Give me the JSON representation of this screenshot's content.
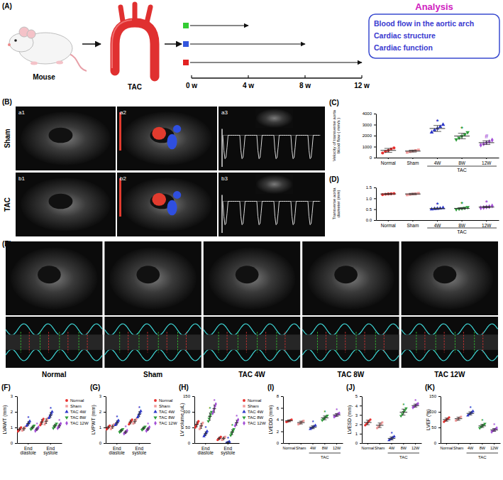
{
  "panel_labels": [
    "(A)",
    "(B)",
    "(C)",
    "(D)",
    "(E)",
    "(F)",
    "(G)",
    "(H)",
    "(I)",
    "(J)",
    "(K)"
  ],
  "diagram": {
    "mouse": "Mouse",
    "surgery": "TAC",
    "timeline": [
      "0 w",
      "4 w",
      "8 w",
      "12 w"
    ],
    "analysis_title": "Analysis",
    "analysis_items": [
      "Blood flow in the aortic arch",
      "Cardiac structure",
      "Cardiac function"
    ]
  },
  "ultrasound": {
    "rows": [
      "Sham",
      "TAC"
    ],
    "images": [
      [
        "a1",
        "a2",
        "a3"
      ],
      [
        "b1",
        "b2",
        "b3"
      ]
    ]
  },
  "echo": {
    "groups": [
      "Normal",
      "Sham",
      "TAC 4W",
      "TAC 8W",
      "TAC 12W"
    ]
  },
  "chart_data": [
    {
      "type": "dot",
      "ylabel": "Velocity of transverse aorta\nblood flow ( mm/s )",
      "xlabel": "TAC",
      "categories": [
        "Normal",
        "Sham",
        "4W",
        "8W",
        "12W"
      ],
      "ylim": [
        0,
        4000
      ],
      "yticks": [
        0,
        1000,
        2000,
        3000,
        4000
      ],
      "series": [
        {
          "color": "#e8312f",
          "marker": "circle",
          "values": [
            420,
            560,
            650,
            780,
            880
          ],
          "mean": 658,
          "sd": 180
        },
        {
          "color": "#f09a9a",
          "marker": "square",
          "values": [
            480,
            540,
            600,
            650,
            700
          ],
          "mean": 594,
          "sd": 85
        },
        {
          "color": "#2b35c9",
          "marker": "triangle",
          "values": [
            2300,
            2500,
            2650,
            2800,
            3000
          ],
          "mean": 2650,
          "sd": 270,
          "annotation": "*"
        },
        {
          "color": "#2e9e3a",
          "marker": "triangle-down",
          "values": [
            1650,
            1800,
            1950,
            2100,
            2300
          ],
          "mean": 1960,
          "sd": 250,
          "annotation": "*"
        },
        {
          "color": "#a34fd6",
          "marker": "diamond",
          "values": [
            1150,
            1250,
            1350,
            1450,
            1600
          ],
          "mean": 1360,
          "sd": 170,
          "annotation": "#"
        }
      ]
    },
    {
      "type": "dot",
      "ylabel": "Transverse aorta\ndiameter (mm)",
      "xlabel": "TAC",
      "categories": [
        "Normal",
        "Sham",
        "4W",
        "8W",
        "12W"
      ],
      "ylim": [
        0,
        1.5
      ],
      "yticks": [
        {
          "value": 0,
          "label": "0.0"
        },
        {
          "value": 0.5,
          "label": "0.5"
        },
        {
          "value": 1,
          "label": "1.0"
        },
        {
          "value": 1.5,
          "label": "1.5"
        }
      ],
      "series": [
        {
          "color": "#e8312f",
          "marker": "circle",
          "values": [
            1.17,
            1.19,
            1.2,
            1.21,
            1.22
          ],
          "mean": 1.2,
          "sd": 0.02
        },
        {
          "color": "#f09a9a",
          "marker": "square",
          "values": [
            1.16,
            1.18,
            1.2,
            1.21,
            1.23
          ],
          "mean": 1.2,
          "sd": 0.03
        },
        {
          "color": "#2b35c9",
          "marker": "triangle",
          "values": [
            0.5,
            0.52,
            0.53,
            0.54,
            0.56
          ],
          "mean": 0.53,
          "sd": 0.02,
          "annotation": "*"
        },
        {
          "color": "#2e9e3a",
          "marker": "triangle-down",
          "values": [
            0.5,
            0.52,
            0.54,
            0.56,
            0.59
          ],
          "mean": 0.54,
          "sd": 0.03,
          "annotation": "*"
        },
        {
          "color": "#a34fd6",
          "marker": "diamond",
          "values": [
            0.56,
            0.58,
            0.6,
            0.62,
            0.65
          ],
          "mean": 0.6,
          "sd": 0.03,
          "annotation": "*"
        }
      ]
    },
    {
      "type": "dot",
      "ylabel": "LVAWT (mm)",
      "categories": [
        "End diastole",
        "End systole"
      ],
      "ylim": [
        0,
        3
      ],
      "yticks": [
        0,
        1,
        2,
        3
      ],
      "legend": "top-right",
      "series": [
        {
          "name": "Normal",
          "color": "#e8312f",
          "marker": "circle",
          "values": [
            [
              0.75,
              0.82,
              0.88,
              0.93,
              1.0
            ],
            [
              1.15,
              1.25,
              1.35,
              1.45,
              1.55
            ]
          ],
          "mean": [
            0.88,
            1.35
          ],
          "sd": [
            0.1,
            0.16
          ]
        },
        {
          "name": "Sham",
          "color": "#f09a9a",
          "marker": "square",
          "values": [
            [
              0.8,
              0.86,
              0.92,
              0.97,
              1.05
            ],
            [
              1.2,
              1.3,
              1.4,
              1.48,
              1.6
            ]
          ],
          "mean": [
            0.92,
            1.4
          ],
          "sd": [
            0.1,
            0.15
          ]
        },
        {
          "name": "TAC 4W",
          "color": "#2b35c9",
          "marker": "triangle",
          "values": [
            [
              1.1,
              1.18,
              1.25,
              1.32,
              1.4
            ],
            [
              1.6,
              1.7,
              1.8,
              1.9,
              2.0
            ]
          ],
          "mean": [
            1.25,
            1.8
          ],
          "sd": [
            0.12,
            0.16
          ],
          "annotations": [
            "*",
            "*"
          ]
        },
        {
          "name": "TAC 8W",
          "color": "#2e9e3a",
          "marker": "triangle-down",
          "values": [
            [
              0.88,
              0.95,
              1.0,
              1.05,
              1.12
            ],
            [
              0.95,
              1.05,
              1.1,
              1.15,
              1.25
            ]
          ],
          "mean": [
            1.0,
            1.1
          ],
          "sd": [
            0.09,
            0.11
          ]
        },
        {
          "name": "TAC 12W",
          "color": "#a34fd6",
          "marker": "diamond",
          "values": [
            [
              0.78,
              0.85,
              0.9,
              0.95,
              1.02
            ],
            [
              0.95,
              1.02,
              1.1,
              1.18,
              1.25
            ]
          ],
          "mean": [
            0.9,
            1.1
          ],
          "sd": [
            0.09,
            0.12
          ],
          "annotations": [
            "*",
            "*"
          ]
        }
      ]
    },
    {
      "type": "dot",
      "ylabel": "LVPWT (mm)",
      "categories": [
        "End diastole",
        "End systole"
      ],
      "ylim": [
        0,
        3
      ],
      "yticks": [
        0,
        1,
        2,
        3
      ],
      "legend": "top-right",
      "series": [
        {
          "name": "Normal",
          "color": "#e8312f",
          "marker": "circle",
          "values": [
            [
              0.88,
              0.95,
              1.0,
              1.05,
              1.12
            ],
            [
              1.2,
              1.28,
              1.35,
              1.42,
              1.5
            ]
          ],
          "mean": [
            1.0,
            1.35
          ],
          "sd": [
            0.09,
            0.12
          ]
        },
        {
          "name": "Sham",
          "color": "#f09a9a",
          "marker": "square",
          "values": [
            [
              0.9,
              0.98,
              1.05,
              1.1,
              1.2
            ],
            [
              1.25,
              1.32,
              1.4,
              1.48,
              1.55
            ]
          ],
          "mean": [
            1.05,
            1.4
          ],
          "sd": [
            0.11,
            0.12
          ]
        },
        {
          "name": "TAC 4W",
          "color": "#2b35c9",
          "marker": "triangle",
          "values": [
            [
              1.15,
              1.22,
              1.3,
              1.38,
              1.45
            ],
            [
              1.65,
              1.75,
              1.85,
              1.95,
              2.05
            ]
          ],
          "mean": [
            1.3,
            1.85
          ],
          "sd": [
            0.12,
            0.16
          ],
          "annotations": [
            "*",
            "*"
          ]
        },
        {
          "name": "TAC 8W",
          "color": "#2e9e3a",
          "marker": "triangle-down",
          "values": [
            [
              0.7,
              0.75,
              0.8,
              0.85,
              0.9
            ],
            [
              0.85,
              0.9,
              0.95,
              1.0,
              1.05
            ]
          ],
          "mean": [
            0.8,
            0.95
          ],
          "sd": [
            0.08,
            0.08
          ]
        },
        {
          "name": "TAC 12W",
          "color": "#a34fd6",
          "marker": "diamond",
          "values": [
            [
              0.6,
              0.65,
              0.7,
              0.75,
              0.8
            ],
            [
              0.78,
              0.85,
              0.9,
              0.95,
              1.02
            ]
          ],
          "mean": [
            0.7,
            0.9
          ],
          "sd": [
            0.08,
            0.09
          ],
          "annotations": [
            "*",
            "*"
          ]
        }
      ]
    },
    {
      "type": "dot",
      "ylabel": "LV volume (uL)",
      "categories": [
        "End diastole",
        "End systole"
      ],
      "ylim": [
        0,
        150
      ],
      "yticks": [
        0,
        50,
        100,
        150
      ],
      "legend": "top-right",
      "series": [
        {
          "name": "Normal",
          "color": "#e8312f",
          "marker": "circle",
          "values": [
            [
              50,
              55,
              60,
              65,
              70
            ],
            [
              10,
              13,
              15,
              17,
              20
            ]
          ],
          "mean": [
            60,
            15
          ],
          "sd": [
            8,
            4
          ]
        },
        {
          "name": "Sham",
          "color": "#f09a9a",
          "marker": "square",
          "values": [
            [
              45,
              50,
              55,
              60,
              65
            ],
            [
              10,
              12,
              15,
              18,
              20
            ]
          ],
          "mean": [
            55,
            15
          ],
          "sd": [
            8,
            4
          ]
        },
        {
          "name": "TAC 4W",
          "color": "#2b35c9",
          "marker": "triangle",
          "values": [
            [
              22,
              26,
              30,
              34,
              38
            ],
            [
              0,
              1,
              2,
              3,
              4
            ]
          ],
          "mean": [
            30,
            2
          ],
          "sd": [
            6,
            1.6
          ],
          "annotations": [
            "*",
            "*"
          ]
        },
        {
          "name": "TAC 8W",
          "color": "#2e9e3a",
          "marker": "triangle-down",
          "values": [
            [
              70,
              78,
              85,
              92,
              100
            ],
            [
              25,
              30,
              35,
              40,
              45
            ]
          ],
          "mean": [
            85,
            35
          ],
          "sd": [
            12,
            8
          ],
          "annotations": [
            "*",
            "*"
          ]
        },
        {
          "name": "TAC 12W",
          "color": "#a34fd6",
          "marker": "diamond",
          "values": [
            [
              95,
              102,
              110,
              118,
              125
            ],
            [
              55,
              60,
              65,
              70,
              75
            ]
          ],
          "mean": [
            110,
            65
          ],
          "sd": [
            12,
            8
          ],
          "annotations": [
            "*",
            "*"
          ]
        }
      ]
    },
    {
      "type": "dot",
      "ylabel": "LVEDD (mm)",
      "xlabel": "TAC",
      "categories": [
        "Normal",
        "Sham",
        "4W",
        "8W",
        "12W"
      ],
      "ylim": [
        0,
        8
      ],
      "yticks": [
        0,
        2,
        4,
        6,
        8
      ],
      "series": [
        {
          "color": "#e8312f",
          "marker": "circle",
          "values": [
            3.6,
            3.7,
            3.8,
            3.9,
            4.0
          ],
          "mean": 3.8,
          "sd": 0.16
        },
        {
          "color": "#f09a9a",
          "marker": "square",
          "values": [
            3.2,
            3.35,
            3.5,
            3.65,
            3.8
          ],
          "mean": 3.5,
          "sd": 0.24
        },
        {
          "color": "#2b35c9",
          "marker": "triangle",
          "values": [
            2.4,
            2.55,
            2.7,
            2.85,
            3.0
          ],
          "mean": 2.7,
          "sd": 0.24,
          "annotation": "*"
        },
        {
          "color": "#2e9e3a",
          "marker": "triangle-down",
          "values": [
            3.9,
            4.1,
            4.3,
            4.5,
            4.7
          ],
          "mean": 4.3,
          "sd": 0.32,
          "annotation": "*"
        },
        {
          "color": "#a34fd6",
          "marker": "diamond",
          "values": [
            4.5,
            4.65,
            4.8,
            4.95,
            5.1
          ],
          "mean": 4.8,
          "sd": 0.24,
          "annotation": "*"
        }
      ]
    },
    {
      "type": "dot",
      "ylabel": "LVESD (mm)",
      "xlabel": "TAC",
      "categories": [
        "Normal",
        "Sham",
        "4W",
        "8W",
        "12W"
      ],
      "ylim": [
        0,
        5
      ],
      "yticks": [
        0,
        1,
        2,
        3,
        4,
        5
      ],
      "series": [
        {
          "color": "#e8312f",
          "marker": "circle",
          "values": [
            1.9,
            2.05,
            2.2,
            2.35,
            2.5
          ],
          "mean": 2.2,
          "sd": 0.24
        },
        {
          "color": "#f09a9a",
          "marker": "square",
          "values": [
            1.6,
            1.75,
            1.9,
            2.05,
            2.2
          ],
          "mean": 1.9,
          "sd": 0.24
        },
        {
          "color": "#2b35c9",
          "marker": "triangle",
          "values": [
            0.3,
            0.4,
            0.5,
            0.6,
            0.7
          ],
          "mean": 0.5,
          "sd": 0.16,
          "annotation": "*"
        },
        {
          "color": "#2e9e3a",
          "marker": "triangle-down",
          "values": [
            2.9,
            3.1,
            3.3,
            3.5,
            3.7
          ],
          "mean": 3.3,
          "sd": 0.32,
          "annotation": "*"
        },
        {
          "color": "#a34fd6",
          "marker": "diamond",
          "values": [
            3.8,
            3.9,
            4.0,
            4.1,
            4.2
          ],
          "mean": 4.0,
          "sd": 0.16,
          "annotation": "*"
        }
      ]
    },
    {
      "type": "dot",
      "ylabel": "LVEF (%)",
      "xlabel": "TAC",
      "categories": [
        "Normal",
        "Sham",
        "4W",
        "8W",
        "12W"
      ],
      "ylim": [
        0,
        150
      ],
      "yticks": [
        0,
        50,
        100,
        150
      ],
      "series": [
        {
          "color": "#e8312f",
          "marker": "circle",
          "values": [
            68,
            72,
            75,
            78,
            82
          ],
          "mean": 75,
          "sd": 5
        },
        {
          "color": "#f09a9a",
          "marker": "square",
          "values": [
            72,
            75,
            78,
            81,
            84
          ],
          "mean": 78,
          "sd": 5
        },
        {
          "color": "#2b35c9",
          "marker": "triangle",
          "values": [
            88,
            92,
            95,
            98,
            102
          ],
          "mean": 95,
          "sd": 5,
          "annotation": "*"
        },
        {
          "color": "#2e9e3a",
          "marker": "triangle-down",
          "values": [
            48,
            52,
            55,
            58,
            62
          ],
          "mean": 55,
          "sd": 5,
          "annotation": "*"
        },
        {
          "color": "#a34fd6",
          "marker": "diamond",
          "values": [
            36,
            40,
            42,
            44,
            48
          ],
          "mean": 42,
          "sd": 4.5,
          "annotation": "*"
        }
      ]
    }
  ]
}
